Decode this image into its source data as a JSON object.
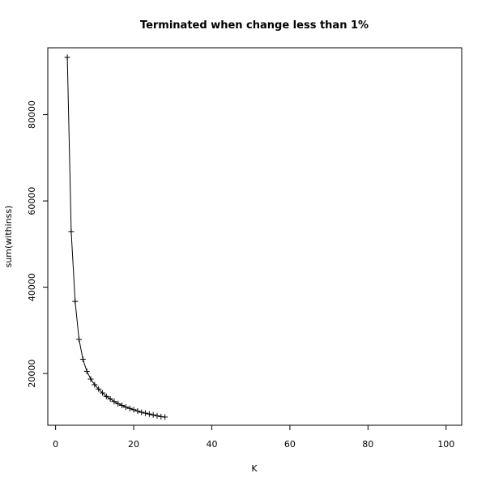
{
  "chart_data": {
    "type": "line",
    "title": "Terminated when change less than 1%",
    "xlabel": "K",
    "ylabel": "sum(withinss)",
    "xlim": [
      -2,
      104
    ],
    "ylim": [
      8000,
      95500
    ],
    "x_ticks": [
      0,
      20,
      40,
      60,
      80,
      100
    ],
    "y_ticks": [
      20000,
      40000,
      60000,
      80000
    ],
    "x_tick_labels": [
      "0",
      "20",
      "40",
      "60",
      "80",
      "100"
    ],
    "y_tick_labels": [
      "20000",
      "40000",
      "60000",
      "80000"
    ],
    "grid": false,
    "legend": "none",
    "marker": "+",
    "line_color": "#000000",
    "series": [
      {
        "x": [
          3,
          4,
          5,
          6,
          7,
          8,
          9,
          10,
          11,
          12,
          13,
          14,
          15,
          16,
          17,
          18,
          19,
          20,
          21,
          22,
          23,
          24,
          25,
          26,
          27,
          28
        ],
        "values": [
          93300,
          52900,
          36700,
          27900,
          23300,
          20500,
          18700,
          17400,
          16400,
          15500,
          14700,
          14100,
          13500,
          13000,
          12600,
          12200,
          11900,
          11600,
          11300,
          11000,
          10800,
          10600,
          10400,
          10200,
          10000,
          9900
        ]
      }
    ]
  }
}
